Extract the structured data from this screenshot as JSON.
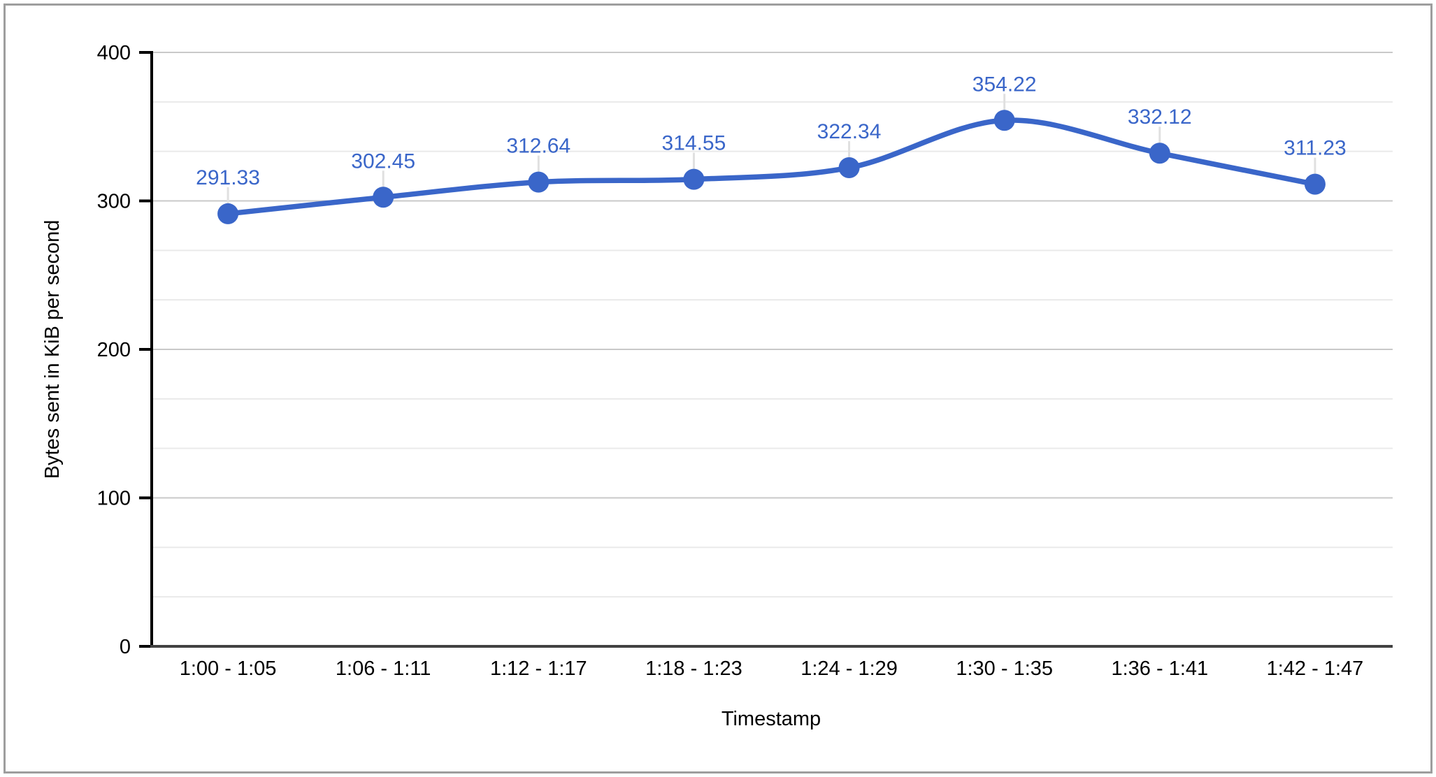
{
  "frame": {
    "background": "#ffffff",
    "border_color": "#9e9e9e"
  },
  "chart_data": {
    "type": "line",
    "title": "",
    "categories": [
      "1:00 - 1:05",
      "1:06 - 1:11",
      "1:12 - 1:17",
      "1:18 - 1:23",
      "1:24 - 1:29",
      "1:30 - 1:35",
      "1:36 - 1:41",
      "1:42 - 1:47"
    ],
    "values": [
      291.33,
      302.45,
      312.64,
      314.55,
      322.34,
      354.22,
      332.12,
      311.23
    ],
    "point_labels": [
      "291.33",
      "302.45",
      "312.64",
      "314.55",
      "322.34",
      "354.22",
      "332.12",
      "311.23"
    ],
    "xlabel": "Timestamp",
    "ylabel": "Bytes sent in KiB per second",
    "ylim": [
      0,
      400
    ],
    "yticks": [
      0,
      100,
      200,
      300,
      400
    ],
    "minor_divisions_per_major": 3,
    "grid": "horizontal",
    "legend_position": "none",
    "smooth": true,
    "markers": true,
    "series_color": "#3A66C9",
    "label_color": "#3A66C9",
    "axis_color": "#000000",
    "baseline_color": "#424242",
    "axis_text_color": "#000000",
    "major_grid_color": "#c9c9c9",
    "minor_grid_color": "#eaeaea",
    "stem_color": "#e0e0e0"
  }
}
